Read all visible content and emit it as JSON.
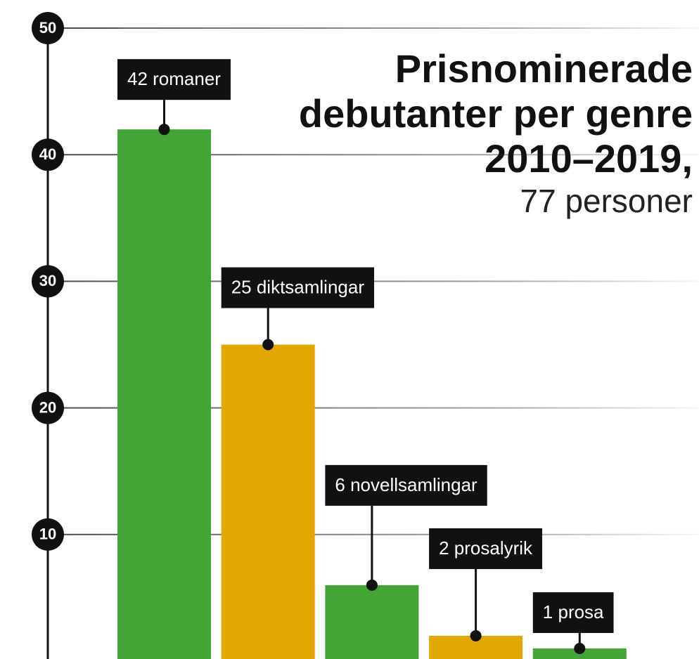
{
  "chart_data": {
    "type": "bar",
    "title": [
      "Prisnominerade",
      "debutanter per genre",
      "2010–2019,"
    ],
    "subtitle": "77 personer",
    "values": [
      42,
      25,
      6,
      2,
      1
    ],
    "value_labels": [
      "42 romaner",
      "25 diktsamlingar",
      "6 novellsamlingar",
      "2 prosalyrik",
      "1 prosa"
    ],
    "colors": [
      "#43a535",
      "#e0a800",
      "#43a535",
      "#e0a800",
      "#43a535"
    ],
    "ylim": [
      0,
      50
    ],
    "yticks": [
      10,
      20,
      30,
      40,
      50
    ],
    "grid": true
  }
}
